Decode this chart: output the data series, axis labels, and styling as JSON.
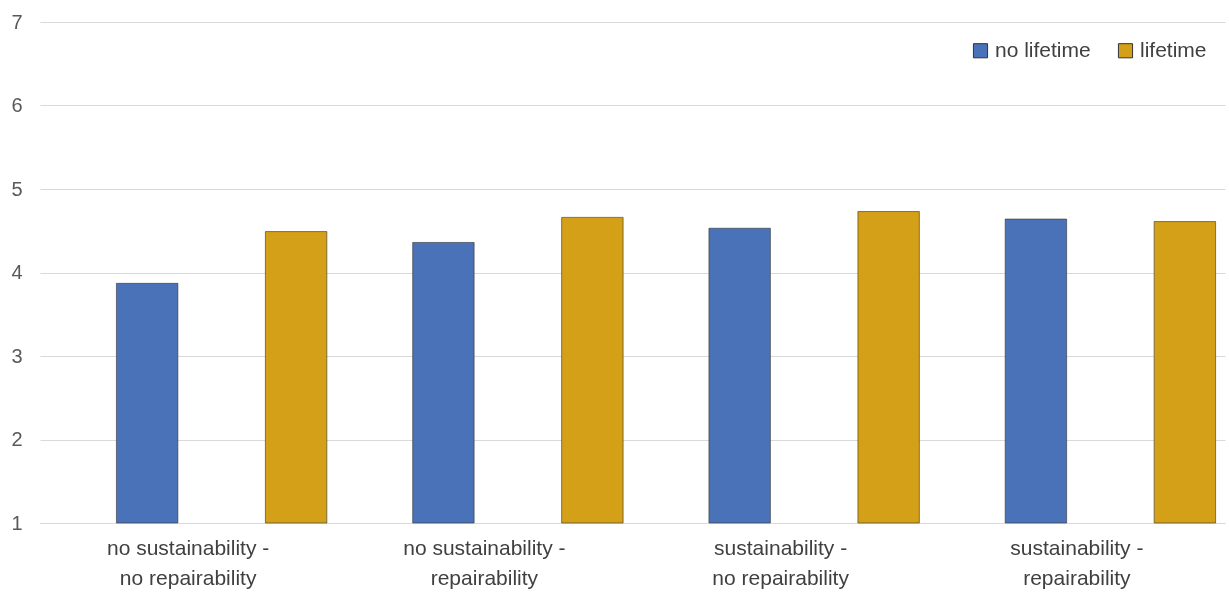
{
  "chart_data": {
    "type": "bar",
    "categories": [
      "no sustainability - no repairability",
      "no sustainability - repairability",
      "sustainability - no repairability",
      "sustainability - repairability"
    ],
    "series": [
      {
        "name": "no lifetime",
        "color": "#4a72b8",
        "values": [
          3.87,
          4.36,
          4.53,
          4.64
        ]
      },
      {
        "name": "lifetime",
        "color": "#d4a017",
        "values": [
          4.49,
          4.66,
          4.73,
          4.61
        ]
      }
    ],
    "ylim": [
      1,
      7
    ],
    "yticks": [
      1,
      2,
      3,
      4,
      5,
      6,
      7
    ],
    "grid": "y",
    "legend": "top right"
  }
}
